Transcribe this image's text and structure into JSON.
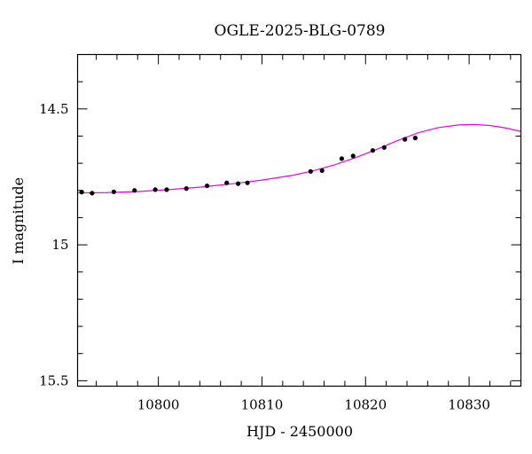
{
  "chart_data": {
    "type": "scatter",
    "title": "OGLE-2025-BLG-0789",
    "xlabel": "HJD - 2450000",
    "ylabel": "I magnitude",
    "xlim": [
      10792.2,
      10835.0
    ],
    "ylim": [
      15.52,
      14.3
    ],
    "y_inverted": true,
    "x_ticks": [
      10800,
      10810,
      10820,
      10830
    ],
    "x_tick_labels": [
      "10800",
      "10810",
      "10820",
      "10830"
    ],
    "y_ticks": [
      14.5,
      15,
      15.5
    ],
    "y_tick_labels": [
      "14.5",
      "15",
      "15.5"
    ],
    "x_minor_step": 2,
    "y_minor_step": 0.1,
    "grid": false,
    "series": [
      {
        "kind": "points",
        "color": "#000000",
        "x": [
          10792.6,
          10793.6,
          10795.7,
          10797.7,
          10799.7,
          10800.8,
          10802.7,
          10804.7,
          10806.6,
          10807.7,
          10808.6,
          10814.7,
          10815.8,
          10817.7,
          10818.8,
          10820.7,
          10821.8,
          10823.8,
          10824.8
        ],
        "y": [
          14.806,
          14.81,
          14.805,
          14.8,
          14.797,
          14.797,
          14.793,
          14.783,
          14.772,
          14.775,
          14.772,
          14.73,
          14.727,
          14.683,
          14.673,
          14.653,
          14.642,
          14.612,
          14.607
        ]
      },
      {
        "kind": "model",
        "color": "#ee00ee",
        "x": [
          10792.2,
          10795,
          10798,
          10801,
          10804,
          10807,
          10810,
          10813,
          10815,
          10817,
          10819,
          10821,
          10823,
          10825,
          10827,
          10829,
          10830.5,
          10832,
          10833.5,
          10835
        ],
        "y": [
          14.809,
          14.808,
          14.804,
          14.797,
          14.788,
          14.776,
          14.762,
          14.744,
          14.727,
          14.706,
          14.68,
          14.65,
          14.618,
          14.589,
          14.569,
          14.559,
          14.557,
          14.561,
          14.57,
          14.583
        ]
      }
    ]
  }
}
